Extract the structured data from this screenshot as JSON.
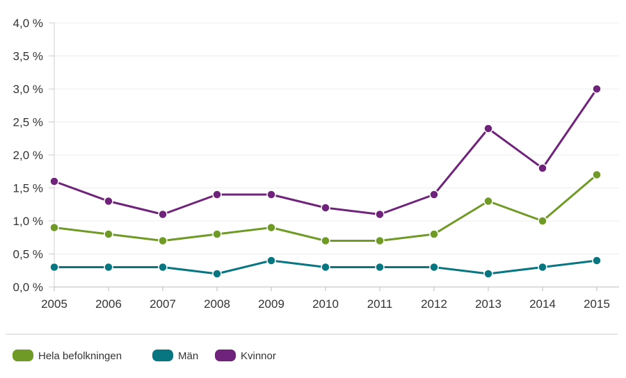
{
  "chart_data": {
    "type": "line",
    "categories": [
      "2005",
      "2006",
      "2007",
      "2008",
      "2009",
      "2010",
      "2011",
      "2012",
      "2013",
      "2014",
      "2015"
    ],
    "series": [
      {
        "name": "Hela befolkningen",
        "color": "#6f9a25",
        "values": [
          0.9,
          0.8,
          0.7,
          0.8,
          0.9,
          0.7,
          0.7,
          0.8,
          1.3,
          1.0,
          1.7
        ]
      },
      {
        "name": "Män",
        "color": "#077680",
        "values": [
          0.3,
          0.3,
          0.3,
          0.2,
          0.4,
          0.3,
          0.3,
          0.3,
          0.2,
          0.3,
          0.4
        ]
      },
      {
        "name": "Kvinnor",
        "color": "#70237a",
        "values": [
          1.6,
          1.3,
          1.1,
          1.4,
          1.4,
          1.2,
          1.1,
          1.4,
          2.4,
          1.8,
          3.0
        ]
      }
    ],
    "y_ticks": [
      {
        "value": 0.0,
        "label": "0,0 %"
      },
      {
        "value": 0.5,
        "label": "0,5 %"
      },
      {
        "value": 1.0,
        "label": "1,0 %"
      },
      {
        "value": 1.5,
        "label": "1,5 %"
      },
      {
        "value": 2.0,
        "label": "2,0 %"
      },
      {
        "value": 2.5,
        "label": "2,5 %"
      },
      {
        "value": 3.0,
        "label": "3,0 %"
      },
      {
        "value": 3.5,
        "label": "3,5 %"
      },
      {
        "value": 4.0,
        "label": "4,0 %"
      }
    ],
    "ylim": [
      0,
      4.0
    ],
    "grid": true,
    "legend_position": "bottom-left",
    "title": "",
    "xlabel": "",
    "ylabel": ""
  }
}
